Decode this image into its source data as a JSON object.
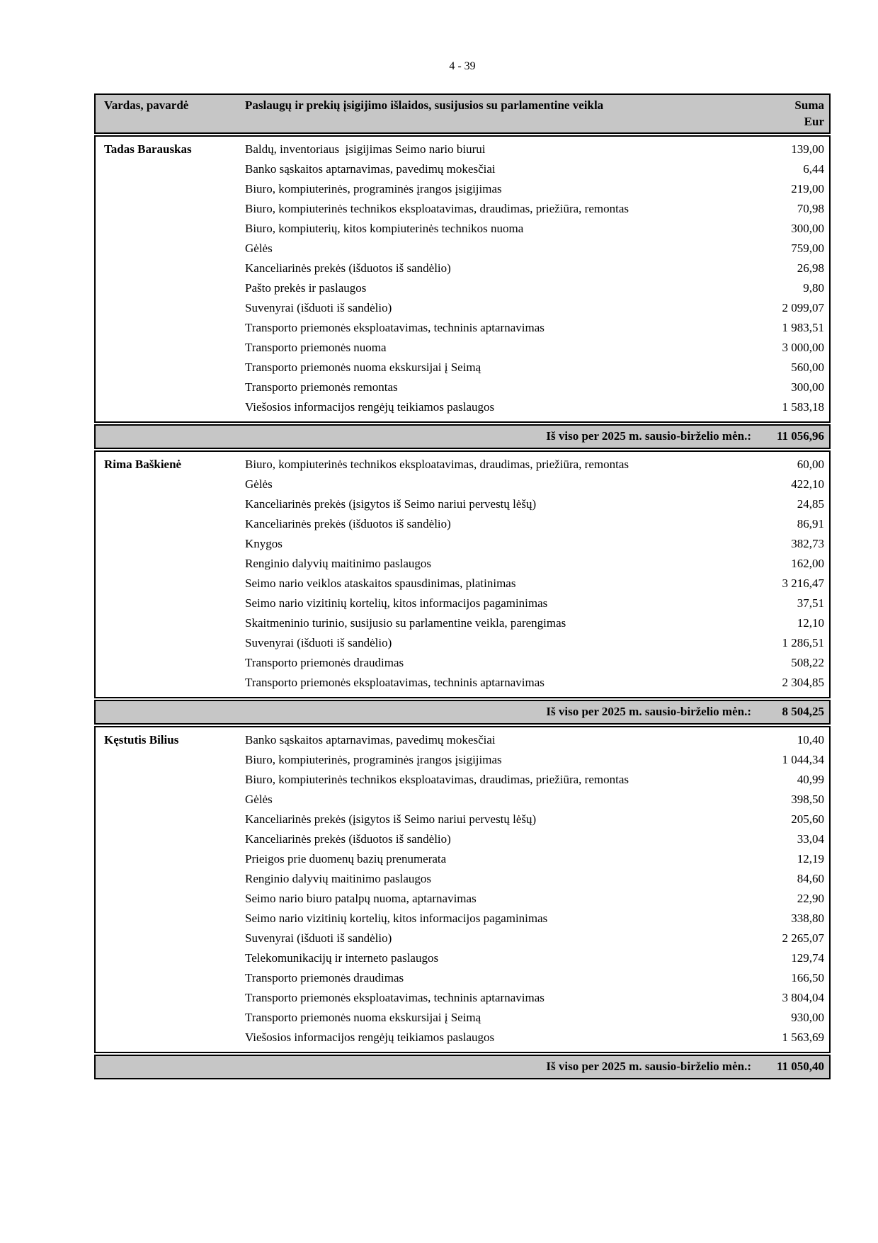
{
  "page": {
    "number": "4 - 39"
  },
  "table": {
    "headers": {
      "name": "Vardas, pavardė",
      "expenses": "Paslaugų ir prekių įsigijimo išlaidos, susijusios su parlamentine veikla",
      "sum_line1": "Suma",
      "sum_line2": "Eur"
    },
    "total_label": "Iš viso per 2025 m. sausio-birželio mėn.:",
    "colors": {
      "header_bg": "#c6c6c6",
      "border": "#000000"
    },
    "blocks": [
      {
        "name": "Tadas Barauskas",
        "rows": [
          {
            "item": "Baldų, inventoriaus  įsigijimas Seimo nario biurui",
            "sum": "139,00"
          },
          {
            "item": "Banko sąskaitos aptarnavimas, pavedimų mokesčiai",
            "sum": "6,44"
          },
          {
            "item": "Biuro, kompiuterinės, programinės įrangos įsigijimas",
            "sum": "219,00"
          },
          {
            "item": "Biuro, kompiuterinės technikos eksploatavimas, draudimas, priežiūra, remontas",
            "sum": "70,98"
          },
          {
            "item": "Biuro, kompiuterių, kitos kompiuterinės technikos nuoma",
            "sum": "300,00"
          },
          {
            "item": "Gėlės",
            "sum": "759,00"
          },
          {
            "item": "Kanceliarinės prekės (išduotos iš sandėlio)",
            "sum": "26,98"
          },
          {
            "item": "Pašto prekės ir paslaugos",
            "sum": "9,80"
          },
          {
            "item": "Suvenyrai (išduoti iš sandėlio)",
            "sum": "2 099,07"
          },
          {
            "item": "Transporto priemonės eksploatavimas, techninis aptarnavimas",
            "sum": "1 983,51"
          },
          {
            "item": "Transporto priemonės nuoma",
            "sum": "3 000,00"
          },
          {
            "item": "Transporto priemonės nuoma ekskursijai į Seimą",
            "sum": "560,00"
          },
          {
            "item": "Transporto priemonės remontas",
            "sum": "300,00"
          },
          {
            "item": "Viešosios informacijos rengėjų teikiamos paslaugos",
            "sum": "1 583,18"
          }
        ],
        "total": "11 056,96"
      },
      {
        "name": "Rima Baškienė",
        "rows": [
          {
            "item": "Biuro, kompiuterinės technikos eksploatavimas, draudimas, priežiūra, remontas",
            "sum": "60,00"
          },
          {
            "item": "Gėlės",
            "sum": "422,10"
          },
          {
            "item": "Kanceliarinės prekės (įsigytos iš Seimo nariui pervestų lėšų)",
            "sum": "24,85"
          },
          {
            "item": "Kanceliarinės prekės (išduotos iš sandėlio)",
            "sum": "86,91"
          },
          {
            "item": "Knygos",
            "sum": "382,73"
          },
          {
            "item": "Renginio dalyvių maitinimo paslaugos",
            "sum": "162,00"
          },
          {
            "item": "Seimo nario veiklos ataskaitos spausdinimas, platinimas",
            "sum": "3 216,47"
          },
          {
            "item": "Seimo nario vizitinių kortelių, kitos informacijos pagaminimas",
            "sum": "37,51"
          },
          {
            "item": "Skaitmeninio turinio, susijusio su parlamentine veikla, parengimas",
            "sum": "12,10"
          },
          {
            "item": "Suvenyrai (išduoti iš sandėlio)",
            "sum": "1 286,51"
          },
          {
            "item": "Transporto priemonės draudimas",
            "sum": "508,22"
          },
          {
            "item": "Transporto priemonės eksploatavimas, techninis aptarnavimas",
            "sum": "2 304,85"
          }
        ],
        "total": "8 504,25"
      },
      {
        "name": "Kęstutis Bilius",
        "rows": [
          {
            "item": "Banko sąskaitos aptarnavimas, pavedimų mokesčiai",
            "sum": "10,40"
          },
          {
            "item": "Biuro, kompiuterinės, programinės įrangos įsigijimas",
            "sum": "1 044,34"
          },
          {
            "item": "Biuro, kompiuterinės technikos eksploatavimas, draudimas, priežiūra, remontas",
            "sum": "40,99"
          },
          {
            "item": "Gėlės",
            "sum": "398,50"
          },
          {
            "item": "Kanceliarinės prekės (įsigytos iš Seimo nariui pervestų lėšų)",
            "sum": "205,60"
          },
          {
            "item": "Kanceliarinės prekės (išduotos iš sandėlio)",
            "sum": "33,04"
          },
          {
            "item": "Prieigos prie duomenų bazių prenumerata",
            "sum": "12,19"
          },
          {
            "item": "Renginio dalyvių maitinimo paslaugos",
            "sum": "84,60"
          },
          {
            "item": "Seimo nario biuro patalpų nuoma, aptarnavimas",
            "sum": "22,90"
          },
          {
            "item": "Seimo nario vizitinių kortelių, kitos informacijos pagaminimas",
            "sum": "338,80"
          },
          {
            "item": "Suvenyrai (išduoti iš sandėlio)",
            "sum": "2 265,07"
          },
          {
            "item": "Telekomunikacijų ir interneto paslaugos",
            "sum": "129,74"
          },
          {
            "item": "Transporto priemonės draudimas",
            "sum": "166,50"
          },
          {
            "item": "Transporto priemonės eksploatavimas, techninis aptarnavimas",
            "sum": "3 804,04"
          },
          {
            "item": "Transporto priemonės nuoma ekskursijai į Seimą",
            "sum": "930,00"
          },
          {
            "item": "Viešosios informacijos rengėjų teikiamos paslaugos",
            "sum": "1 563,69"
          }
        ],
        "total": "11 050,40"
      }
    ]
  }
}
